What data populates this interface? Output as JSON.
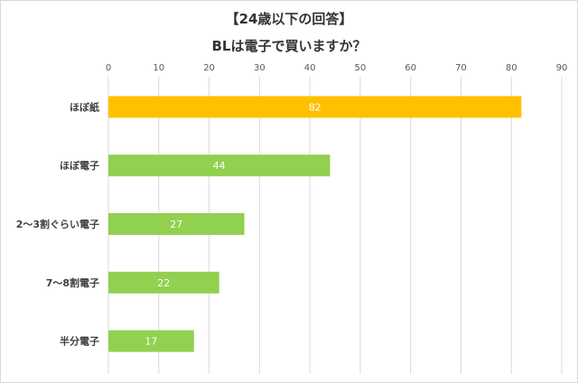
{
  "header": {
    "title_line1": "【24歳以下の回答】",
    "title_line2": "BLは電子で買いますか？"
  },
  "chart_data": {
    "type": "bar",
    "orientation": "horizontal",
    "title": "【24歳以下の回答】 BLは電子で買いますか？",
    "categories": [
      "ほぼ紙",
      "ほぼ電子",
      "2～3割ぐらい電子",
      "7～8割電子",
      "半分電子"
    ],
    "values": [
      82,
      44,
      27,
      22,
      17
    ],
    "data_labels": [
      "82",
      "44",
      "27",
      "22",
      "17"
    ],
    "bar_colors": [
      "#FFC000",
      "#92D050",
      "#92D050",
      "#92D050",
      "#92D050"
    ],
    "xlim": [
      0,
      90
    ],
    "xticks": [
      0,
      10,
      20,
      30,
      40,
      50,
      60,
      70,
      80,
      90
    ],
    "xtick_labels": [
      "0",
      "10",
      "20",
      "30",
      "40",
      "50",
      "60",
      "70",
      "80",
      "90"
    ],
    "xaxis_position": "top",
    "grid": true,
    "legend": "none"
  }
}
